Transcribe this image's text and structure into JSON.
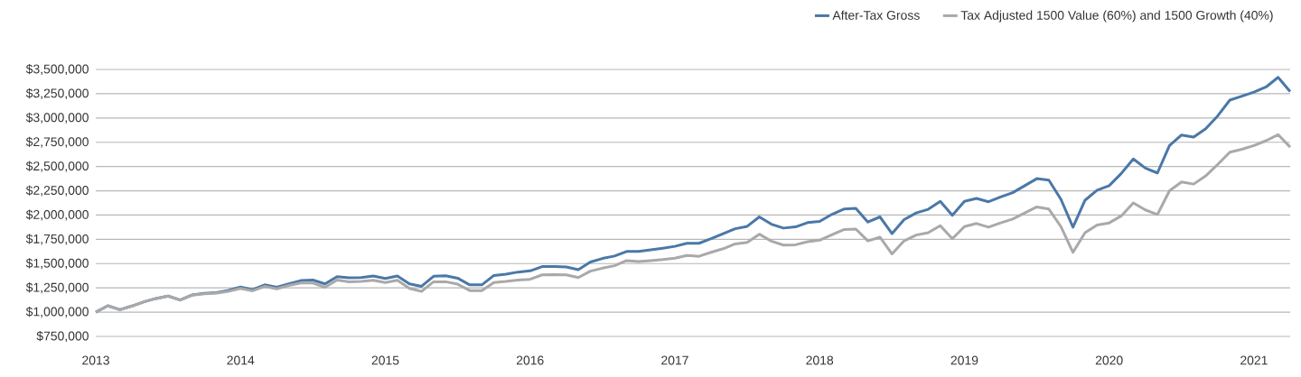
{
  "chart_data": {
    "type": "line",
    "x": [
      "2013-01",
      "2013-02",
      "2013-03",
      "2013-04",
      "2013-05",
      "2013-06",
      "2013-07",
      "2013-08",
      "2013-09",
      "2013-10",
      "2013-11",
      "2013-12",
      "2014-01",
      "2014-02",
      "2014-03",
      "2014-04",
      "2014-05",
      "2014-06",
      "2014-07",
      "2014-08",
      "2014-09",
      "2014-10",
      "2014-11",
      "2014-12",
      "2015-01",
      "2015-02",
      "2015-03",
      "2015-04",
      "2015-05",
      "2015-06",
      "2015-07",
      "2015-08",
      "2015-09",
      "2015-10",
      "2015-11",
      "2015-12",
      "2016-01",
      "2016-02",
      "2016-03",
      "2016-04",
      "2016-05",
      "2016-06",
      "2016-07",
      "2016-08",
      "2016-09",
      "2016-10",
      "2016-11",
      "2016-12",
      "2017-01",
      "2017-02",
      "2017-03",
      "2017-04",
      "2017-05",
      "2017-06",
      "2017-07",
      "2017-08",
      "2017-09",
      "2017-10",
      "2017-11",
      "2017-12",
      "2018-01",
      "2018-02",
      "2018-03",
      "2018-04",
      "2018-05",
      "2018-06",
      "2018-07",
      "2018-08",
      "2018-09",
      "2018-10",
      "2018-11",
      "2018-12",
      "2019-01",
      "2019-02",
      "2019-03",
      "2019-04",
      "2019-05",
      "2019-06",
      "2019-07",
      "2019-08",
      "2019-09",
      "2019-10",
      "2019-11",
      "2019-12",
      "2020-01",
      "2020-02",
      "2020-03",
      "2020-04",
      "2020-05",
      "2020-06",
      "2020-07",
      "2020-08",
      "2020-09",
      "2020-10",
      "2020-11",
      "2020-12",
      "2021-01",
      "2021-02",
      "2021-03",
      "2021-04"
    ],
    "series": [
      {
        "name": "After-Tax Gross",
        "color": "#4a78a8",
        "values": [
          1000000,
          1066000,
          1025000,
          1063000,
          1106000,
          1141000,
          1166000,
          1125000,
          1178000,
          1194000,
          1200000,
          1225000,
          1259000,
          1231000,
          1281000,
          1256000,
          1291000,
          1325000,
          1331000,
          1291000,
          1366000,
          1353000,
          1356000,
          1372000,
          1347000,
          1372000,
          1291000,
          1266000,
          1369000,
          1375000,
          1350000,
          1281000,
          1281000,
          1378000,
          1391000,
          1413000,
          1425000,
          1469000,
          1469000,
          1466000,
          1437000,
          1516000,
          1553000,
          1578000,
          1625000,
          1625000,
          1641000,
          1659000,
          1678000,
          1709000,
          1709000,
          1756000,
          1809000,
          1859000,
          1884000,
          1981000,
          1906000,
          1866000,
          1878000,
          1922000,
          1934000,
          2006000,
          2062000,
          2069000,
          1928000,
          1981000,
          1809000,
          1953000,
          2022000,
          2059000,
          2141000,
          1997000,
          2141000,
          2172000,
          2137000,
          2187000,
          2231000,
          2303000,
          2375000,
          2359000,
          2162000,
          1875000,
          2153000,
          2256000,
          2303000,
          2428000,
          2578000,
          2484000,
          2434000,
          2716000,
          2825000,
          2803000,
          2890000,
          3022000,
          3184000,
          3225000,
          3266000,
          3319000,
          3419000,
          3272000
        ]
      },
      {
        "name": "Tax Adjusted 1500 Value (60%) and 1500 Growth (40%)",
        "color": "#a9a9a9",
        "values": [
          1000000,
          1066000,
          1025000,
          1063000,
          1106000,
          1141000,
          1166000,
          1125000,
          1175000,
          1190000,
          1195000,
          1215000,
          1245000,
          1220000,
          1265000,
          1240000,
          1275000,
          1300000,
          1300000,
          1256000,
          1331000,
          1313000,
          1316000,
          1328000,
          1306000,
          1328000,
          1244000,
          1213000,
          1313000,
          1313000,
          1288000,
          1222000,
          1222000,
          1306000,
          1316000,
          1331000,
          1338000,
          1384000,
          1387000,
          1384000,
          1356000,
          1422000,
          1453000,
          1478000,
          1531000,
          1522000,
          1531000,
          1541000,
          1556000,
          1584000,
          1575000,
          1616000,
          1653000,
          1703000,
          1719000,
          1803000,
          1731000,
          1691000,
          1694000,
          1725000,
          1741000,
          1797000,
          1850000,
          1856000,
          1734000,
          1772000,
          1600000,
          1734000,
          1794000,
          1819000,
          1891000,
          1756000,
          1881000,
          1913000,
          1875000,
          1919000,
          1959000,
          2022000,
          2084000,
          2062000,
          1881000,
          1616000,
          1819000,
          1897000,
          1919000,
          1991000,
          2125000,
          2053000,
          2006000,
          2250000,
          2341000,
          2319000,
          2403000,
          2522000,
          2647000,
          2678000,
          2716000,
          2766000,
          2828000,
          2700000
        ]
      }
    ],
    "xlim": [
      "2013-01",
      "2021-04"
    ],
    "xticks": [
      "2013",
      "2014",
      "2015",
      "2016",
      "2017",
      "2018",
      "2019",
      "2020",
      "2021"
    ],
    "ylim": [
      750000,
      3500000
    ],
    "yticks": [
      {
        "value": 750000,
        "label": "$750,000"
      },
      {
        "value": 1000000,
        "label": "$1,000,000"
      },
      {
        "value": 1250000,
        "label": "$1,250,000"
      },
      {
        "value": 1500000,
        "label": "$1,500,000"
      },
      {
        "value": 1750000,
        "label": "$1,750,000"
      },
      {
        "value": 2000000,
        "label": "$2,000,000"
      },
      {
        "value": 2250000,
        "label": "$2,250,000"
      },
      {
        "value": 2500000,
        "label": "$2,500,000"
      },
      {
        "value": 2750000,
        "label": "$2,750,000"
      },
      {
        "value": 3000000,
        "label": "$3,000,000"
      },
      {
        "value": 3250000,
        "label": "$3,250,000"
      },
      {
        "value": 3500000,
        "label": "$3,500,000"
      }
    ],
    "grid": "y",
    "legend": "top right",
    "marker": "none",
    "line_style": "solid"
  }
}
